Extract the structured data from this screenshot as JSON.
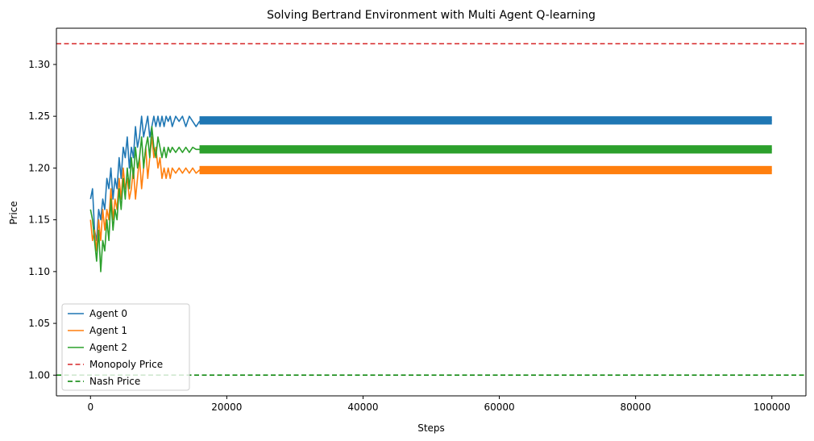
{
  "chart_data": {
    "type": "line",
    "title": "Solving Bertrand Environment with Multi Agent Q-learning",
    "xlabel": "Steps",
    "ylabel": "Price",
    "xlim": [
      -5000,
      105000
    ],
    "ylim": [
      0.98,
      1.335
    ],
    "x_ticks": [
      0,
      20000,
      40000,
      60000,
      80000,
      100000
    ],
    "x_tick_labels": [
      "0",
      "20000",
      "40000",
      "60000",
      "80000",
      "100000"
    ],
    "y_ticks": [
      1.0,
      1.05,
      1.1,
      1.15,
      1.2,
      1.25,
      1.3
    ],
    "y_tick_labels": [
      "1.00",
      "1.05",
      "1.10",
      "1.15",
      "1.20",
      "1.25",
      "1.30"
    ],
    "grid": false,
    "legend_position": "lower-left",
    "series": [
      {
        "name": "Agent 0",
        "color": "#1f77b4",
        "style": "solid",
        "band_width": 0.008,
        "x": [
          0,
          300,
          600,
          900,
          1200,
          1500,
          1800,
          2100,
          2400,
          2700,
          3000,
          3300,
          3600,
          3900,
          4200,
          4500,
          4800,
          5100,
          5400,
          5700,
          6000,
          6300,
          6600,
          6900,
          7200,
          7500,
          7800,
          8100,
          8400,
          8700,
          9000,
          9300,
          9600,
          9900,
          10200,
          10500,
          10800,
          11100,
          11400,
          11700,
          12000,
          12500,
          13000,
          13500,
          14000,
          14500,
          15000,
          15500,
          16000,
          16500,
          100000
        ],
        "y": [
          1.17,
          1.18,
          1.14,
          1.13,
          1.16,
          1.15,
          1.17,
          1.16,
          1.19,
          1.18,
          1.2,
          1.17,
          1.19,
          1.18,
          1.21,
          1.19,
          1.22,
          1.21,
          1.23,
          1.2,
          1.22,
          1.21,
          1.24,
          1.22,
          1.23,
          1.25,
          1.23,
          1.24,
          1.25,
          1.23,
          1.24,
          1.25,
          1.24,
          1.25,
          1.24,
          1.25,
          1.24,
          1.25,
          1.245,
          1.25,
          1.24,
          1.25,
          1.245,
          1.25,
          1.24,
          1.25,
          1.245,
          1.24,
          1.245,
          1.246,
          1.246
        ]
      },
      {
        "name": "Agent 1",
        "color": "#ff7f0e",
        "style": "solid",
        "band_width": 0.008,
        "x": [
          0,
          300,
          600,
          900,
          1200,
          1500,
          1800,
          2100,
          2400,
          2700,
          3000,
          3300,
          3600,
          3900,
          4200,
          4500,
          4800,
          5100,
          5400,
          5700,
          6000,
          6300,
          6600,
          6900,
          7200,
          7500,
          7800,
          8100,
          8400,
          8700,
          9000,
          9300,
          9600,
          9900,
          10200,
          10500,
          10800,
          11100,
          11400,
          11700,
          12000,
          12500,
          13000,
          13500,
          14000,
          14500,
          15000,
          15500,
          16000,
          16500,
          100000
        ],
        "y": [
          1.15,
          1.13,
          1.14,
          1.12,
          1.15,
          1.13,
          1.16,
          1.14,
          1.16,
          1.15,
          1.18,
          1.15,
          1.17,
          1.16,
          1.19,
          1.17,
          1.2,
          1.18,
          1.19,
          1.17,
          1.18,
          1.2,
          1.17,
          1.19,
          1.21,
          1.18,
          1.2,
          1.22,
          1.19,
          1.21,
          1.23,
          1.21,
          1.22,
          1.2,
          1.21,
          1.19,
          1.2,
          1.19,
          1.2,
          1.19,
          1.2,
          1.195,
          1.2,
          1.195,
          1.2,
          1.195,
          1.2,
          1.195,
          1.198,
          1.198,
          1.198
        ]
      },
      {
        "name": "Agent 2",
        "color": "#2ca02c",
        "style": "solid",
        "band_width": 0.008,
        "x": [
          0,
          300,
          600,
          900,
          1200,
          1500,
          1800,
          2100,
          2400,
          2700,
          3000,
          3300,
          3600,
          3900,
          4200,
          4500,
          4800,
          5100,
          5400,
          5700,
          6000,
          6300,
          6600,
          6900,
          7200,
          7500,
          7800,
          8100,
          8400,
          8700,
          9000,
          9300,
          9600,
          9900,
          10200,
          10500,
          10800,
          11100,
          11400,
          11700,
          12000,
          12500,
          13000,
          13500,
          14000,
          14500,
          15000,
          15500,
          16000,
          16500,
          100000
        ],
        "y": [
          1.16,
          1.15,
          1.13,
          1.11,
          1.14,
          1.1,
          1.13,
          1.12,
          1.15,
          1.13,
          1.17,
          1.14,
          1.16,
          1.15,
          1.18,
          1.16,
          1.19,
          1.17,
          1.2,
          1.18,
          1.21,
          1.19,
          1.22,
          1.2,
          1.21,
          1.23,
          1.2,
          1.22,
          1.23,
          1.21,
          1.24,
          1.22,
          1.21,
          1.23,
          1.22,
          1.21,
          1.22,
          1.21,
          1.22,
          1.215,
          1.22,
          1.215,
          1.22,
          1.215,
          1.22,
          1.215,
          1.22,
          1.218,
          1.218,
          1.218,
          1.218
        ]
      },
      {
        "name": "Monopoly Price",
        "color": "#d62728",
        "style": "dashed",
        "hline": 1.32
      },
      {
        "name": "Nash Price",
        "color": "#008000",
        "style": "dashed",
        "hline": 1.0
      }
    ]
  }
}
